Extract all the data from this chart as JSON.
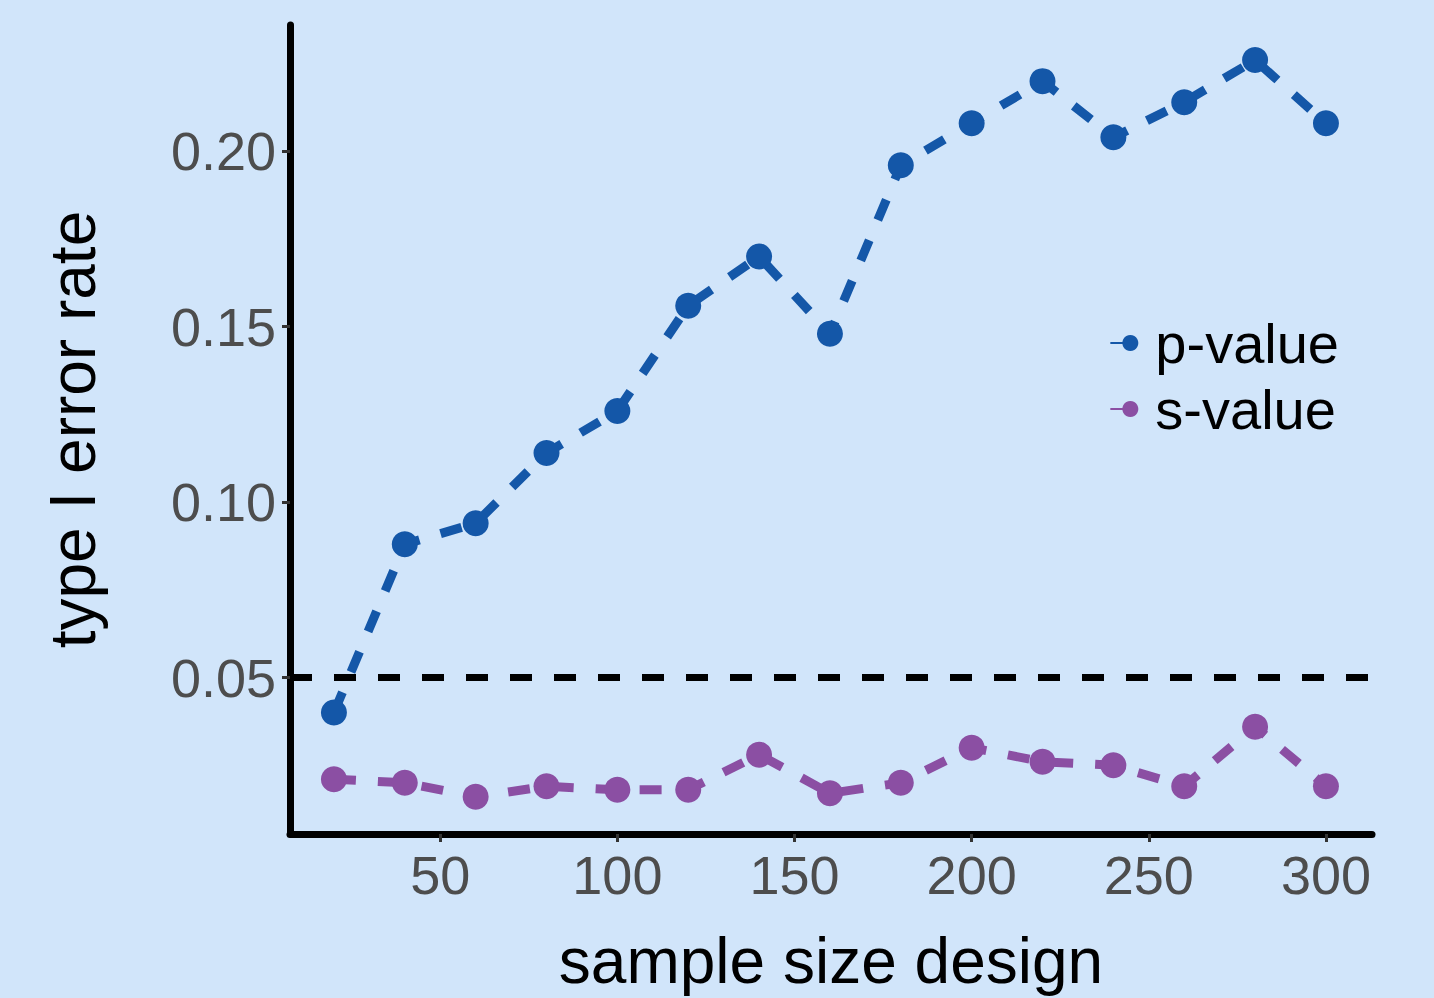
{
  "chart_data": {
    "type": "line",
    "xlabel": "sample size design",
    "ylabel": "type I error rate",
    "x": [
      20,
      40,
      60,
      80,
      100,
      120,
      140,
      160,
      180,
      200,
      220,
      240,
      260,
      280,
      300
    ],
    "series": [
      {
        "name": "p-value",
        "color": "#1457a8",
        "values": [
          0.04,
          0.088,
          0.094,
          0.114,
          0.126,
          0.156,
          0.17,
          0.148,
          0.196,
          0.208,
          0.22,
          0.204,
          0.214,
          0.226,
          0.208
        ]
      },
      {
        "name": "s-value",
        "color": "#8b4fa3",
        "values": [
          0.021,
          0.02,
          0.016,
          0.019,
          0.018,
          0.018,
          0.028,
          0.017,
          0.02,
          0.03,
          0.026,
          0.025,
          0.019,
          0.036,
          0.019
        ]
      }
    ],
    "xlim": [
      7.6,
      313
    ],
    "xticks": [
      50,
      100,
      150,
      200,
      250,
      300
    ],
    "ylim": [
      0.0054,
      0.236
    ],
    "yticks": [
      0.05,
      {
        "value": 0.1,
        "label": "0.10"
      },
      0.15,
      {
        "value": 0.2,
        "label": "0.20"
      }
    ],
    "ref_lines": [
      {
        "axis": "y",
        "value": 0.05,
        "color": "#000000",
        "line_style": "dashed"
      }
    ],
    "grid": false,
    "legend": "right",
    "marker": "circle",
    "line_style": "dashed"
  }
}
